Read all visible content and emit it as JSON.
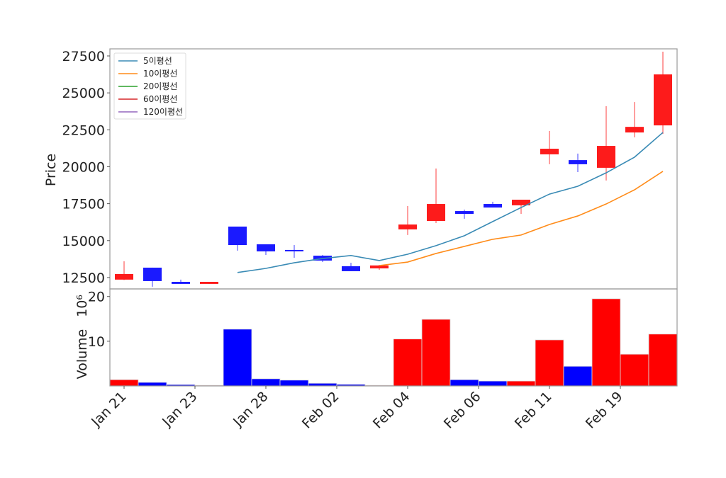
{
  "chart_data": {
    "type": "candlestick",
    "colors": {
      "up": "#fd1b1b",
      "down": "#1a1aff",
      "volume_up": "#ff0000",
      "volume_down": "#0000ff",
      "ma5": "#3a8bb5",
      "ma10": "#ff8c1a",
      "ma20": "#2ca02c",
      "ma60": "#d62728",
      "ma120": "#9467bd"
    },
    "price_panel": {
      "ylabel": "Price",
      "ylim": [
        11730,
        27980
      ],
      "yticks": [
        12500,
        15000,
        17500,
        20000,
        22500,
        25000,
        27500
      ],
      "ytick_labels": [
        "12500",
        "15000",
        "17500",
        "20000",
        "22500",
        "25000",
        "27500"
      ],
      "legend_placement": "top-left",
      "legend": [
        "5이평선",
        "10이평선",
        "20이평선",
        "60이평선",
        "120이평선"
      ],
      "ohlc": [
        {
          "o": 12360,
          "h": 13600,
          "l": 12330,
          "c": 12740
        },
        {
          "o": 13170,
          "h": 13170,
          "l": 11880,
          "c": 12260
        },
        {
          "o": 12210,
          "h": 12360,
          "l": 12070,
          "c": 12070
        },
        {
          "o": 12070,
          "h": 12210,
          "l": 12070,
          "c": 12210
        },
        {
          "o": 15950,
          "h": 15950,
          "l": 14320,
          "c": 14700
        },
        {
          "o": 14750,
          "h": 14750,
          "l": 14030,
          "c": 14270
        },
        {
          "o": 14370,
          "h": 14700,
          "l": 13840,
          "c": 14300
        },
        {
          "o": 13980,
          "h": 14030,
          "l": 13550,
          "c": 13650
        },
        {
          "o": 13270,
          "h": 13500,
          "l": 12930,
          "c": 12930
        },
        {
          "o": 13120,
          "h": 13360,
          "l": 13020,
          "c": 13320
        },
        {
          "o": 15760,
          "h": 17340,
          "l": 15380,
          "c": 16090
        },
        {
          "o": 16330,
          "h": 19880,
          "l": 16190,
          "c": 17480
        },
        {
          "o": 17000,
          "h": 17100,
          "l": 16480,
          "c": 16810
        },
        {
          "o": 17480,
          "h": 17630,
          "l": 17240,
          "c": 17240
        },
        {
          "o": 17390,
          "h": 17770,
          "l": 16810,
          "c": 17770
        },
        {
          "o": 20840,
          "h": 22420,
          "l": 20170,
          "c": 21220
        },
        {
          "o": 20450,
          "h": 20890,
          "l": 19640,
          "c": 20170
        },
        {
          "o": 19930,
          "h": 24100,
          "l": 19070,
          "c": 21410
        },
        {
          "o": 22320,
          "h": 24380,
          "l": 21990,
          "c": 22700
        },
        {
          "o": 22800,
          "h": 27790,
          "l": 22230,
          "c": 26250
        }
      ],
      "ma5": [
        null,
        null,
        null,
        null,
        12840,
        13120,
        13500,
        13790,
        13990,
        13650,
        14080,
        14660,
        15330,
        16290,
        17240,
        18150,
        18680,
        19590,
        20650,
        22320
      ],
      "ma10": [
        null,
        null,
        null,
        null,
        null,
        null,
        null,
        null,
        null,
        13310,
        13550,
        14130,
        14610,
        15090,
        15380,
        16090,
        16670,
        17480,
        18440,
        19690
      ]
    },
    "volume_panel": {
      "ylabel": "Volume",
      "offset_label": "10⁶",
      "ylim": [
        0,
        21.7
      ],
      "yticks": [
        10,
        20
      ],
      "ytick_labels": [
        "10",
        "20"
      ],
      "values": [
        1.4,
        0.8,
        0.3,
        0.15,
        12.7,
        1.6,
        1.3,
        0.6,
        0.35,
        0.15,
        10.5,
        14.9,
        1.4,
        1.1,
        1.1,
        10.3,
        4.4,
        19.5,
        7.1,
        11.6
      ]
    },
    "xticks": {
      "positions": [
        0,
        2.5,
        5,
        7.5,
        10,
        12.5,
        15,
        17.5
      ],
      "labels": [
        "Jan 21",
        "Jan 23",
        "Jan 28",
        "Feb 02",
        "Feb 04",
        "Feb 06",
        "Feb 11",
        "Feb 19"
      ]
    }
  }
}
